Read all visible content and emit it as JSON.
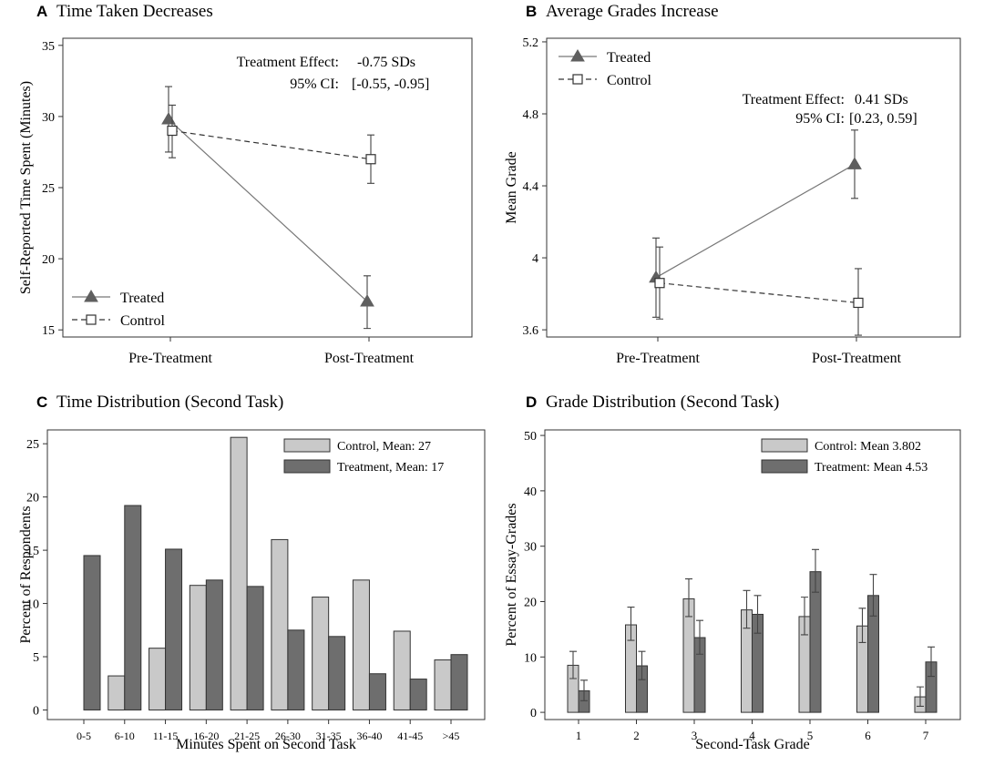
{
  "chart_data": [
    {
      "type": "line",
      "panel_letter": "A",
      "title": "Time Taken Decreases",
      "xlabel": "",
      "ylabel": "Self-Reported Time Spent (Minutes)",
      "categories": [
        "Pre-Treatment",
        "Post-Treatment"
      ],
      "ylim": [
        14.5,
        35.5
      ],
      "yticks": [
        15,
        20,
        25,
        30,
        35
      ],
      "ytick_labels": [
        "15",
        "20",
        "25",
        "30",
        "35"
      ],
      "series": [
        {
          "name": "Treated",
          "values": [
            29.8,
            17.0
          ],
          "err_low": [
            27.5,
            15.1
          ],
          "err_high": [
            32.1,
            18.8
          ],
          "marker": "triangle",
          "dash": "solid"
        },
        {
          "name": "Control",
          "values": [
            29.0,
            27.0
          ],
          "err_low": [
            27.1,
            25.3
          ],
          "err_high": [
            30.8,
            28.7
          ],
          "marker": "square",
          "dash": "dashed"
        }
      ],
      "annotation": {
        "line1_label": "Treatment Effect:",
        "line1_value": "-0.75 SDs",
        "line2_label": "95% CI:",
        "line2_value": "[-0.55, -0.95]"
      },
      "legend_position": "bottom-left"
    },
    {
      "type": "line",
      "panel_letter": "B",
      "title": "Average Grades Increase",
      "xlabel": "",
      "ylabel": "Mean Grade",
      "categories": [
        "Pre-Treatment",
        "Post-Treatment"
      ],
      "ylim": [
        3.56,
        5.22
      ],
      "yticks": [
        3.6,
        4.0,
        4.4,
        4.8,
        5.2
      ],
      "ytick_labels": [
        "3.6",
        "4",
        "4.4",
        "4.8",
        "5.2"
      ],
      "series": [
        {
          "name": "Treated",
          "values": [
            3.89,
            4.52
          ],
          "err_low": [
            3.67,
            4.33
          ],
          "err_high": [
            4.11,
            4.71
          ],
          "marker": "triangle",
          "dash": "solid"
        },
        {
          "name": "Control",
          "values": [
            3.86,
            3.75
          ],
          "err_low": [
            3.66,
            3.57
          ],
          "err_high": [
            4.06,
            3.94
          ],
          "marker": "square",
          "dash": "dashed"
        }
      ],
      "annotation": {
        "line1_label": "Treatment Effect:",
        "line1_value": "0.41 SDs",
        "line2_label": "95% CI:",
        "line2_value": "[0.23, 0.59]"
      },
      "legend_position": "top-left"
    },
    {
      "type": "bar",
      "panel_letter": "C",
      "title": "Time Distribution (Second Task)",
      "xlabel": "Minutes Spent on Second Task",
      "ylabel": "Percent of Respondents",
      "categories": [
        "0-5",
        "6-10",
        "11-15",
        "16-20",
        "21-25",
        "26-30",
        "31-35",
        "36-40",
        "41-45",
        ">45"
      ],
      "ylim": [
        -0.9,
        26.3
      ],
      "yticks": [
        0,
        5,
        10,
        15,
        20,
        25
      ],
      "ytick_labels": [
        "0",
        "5",
        "10",
        "15",
        "20",
        "25"
      ],
      "series": [
        {
          "name": "Control, Mean: 27",
          "values": [
            0,
            3.2,
            5.8,
            11.7,
            25.6,
            16.0,
            10.6,
            12.2,
            7.4,
            4.7
          ],
          "color": "#c9c9c9"
        },
        {
          "name": "Treatment, Mean: 17",
          "values": [
            14.5,
            19.2,
            15.1,
            12.2,
            11.6,
            7.5,
            6.9,
            3.4,
            2.9,
            5.2
          ],
          "color": "#6e6e6e"
        }
      ],
      "legend_position": "top-right"
    },
    {
      "type": "bar",
      "panel_letter": "D",
      "title": "Grade Distribution (Second Task)",
      "xlabel": "Second-Task Grade",
      "ylabel": "Percent of Essay-Grades",
      "categories": [
        "1",
        "2",
        "3",
        "4",
        "5",
        "6",
        "7"
      ],
      "ylim": [
        -1.3,
        51
      ],
      "yticks": [
        0,
        10,
        20,
        30,
        40,
        50
      ],
      "ytick_labels": [
        "0",
        "10",
        "20",
        "30",
        "40",
        "50"
      ],
      "series": [
        {
          "name": "Control: Mean 3.802",
          "values": [
            8.5,
            15.8,
            20.5,
            18.5,
            17.3,
            15.6,
            2.8
          ],
          "err_low": [
            6.1,
            13.0,
            17.3,
            15.2,
            14.0,
            12.6,
            1.1
          ],
          "err_high": [
            11.0,
            19.0,
            24.1,
            22.0,
            20.8,
            18.8,
            4.6
          ],
          "color": "#c9c9c9"
        },
        {
          "name": "Treatment: Mean 4.53",
          "values": [
            3.9,
            8.4,
            13.5,
            17.7,
            25.4,
            21.1,
            9.1
          ],
          "err_low": [
            2.1,
            5.9,
            10.5,
            14.3,
            21.7,
            17.4,
            6.5
          ],
          "err_high": [
            5.8,
            11.0,
            16.6,
            21.1,
            29.4,
            24.9,
            11.8
          ],
          "color": "#6e6e6e"
        }
      ],
      "legend_position": "top-right"
    }
  ]
}
